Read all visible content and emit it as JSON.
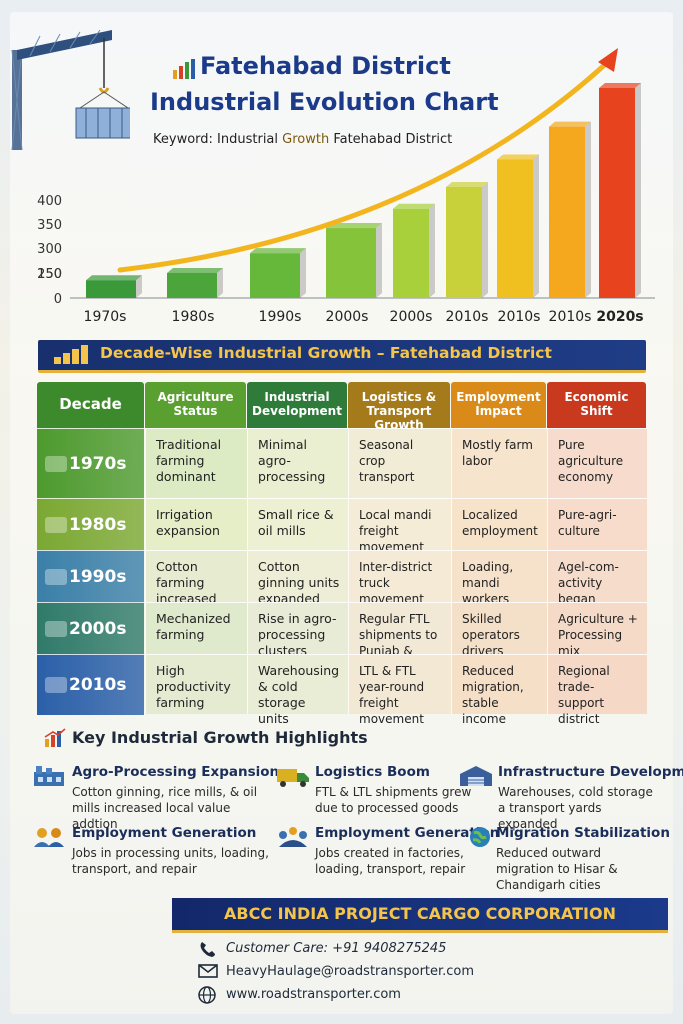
{
  "header": {
    "title_line1": "Fatehabad District",
    "title_line2": "Industrial Evolution Chart",
    "keyword_prefix": "Keyword: Industrial ",
    "keyword_accent": "Growth",
    "keyword_suffix": " Fatehabad District"
  },
  "chart_data": {
    "type": "bar",
    "title": "Fatehabad District Industrial Evolution Chart",
    "categories": [
      "1970s",
      "1980s",
      "1990s",
      "2000s",
      "2000s",
      "2010s",
      "2010s",
      "2010s",
      "2020s"
    ],
    "values": [
      12,
      27,
      68,
      120,
      160,
      205,
      262,
      330,
      410
    ],
    "colors": [
      "#3a9a3a",
      "#4ba53a",
      "#66b83a",
      "#85c43a",
      "#a7d03a",
      "#c9d13a",
      "#f0c020",
      "#f5a81e",
      "#e8431f"
    ],
    "ylim": [
      0,
      400
    ],
    "yticks": [
      0,
      150,
      200,
      250,
      300,
      350,
      400
    ],
    "trend": "upward arrow"
  },
  "section": {
    "title": "Decade-Wise Industrial Growth – Fatehabad District"
  },
  "table": {
    "headers": [
      {
        "label": "Decade",
        "color": "#3d8a2c"
      },
      {
        "label": "Agriculture Status",
        "color": "#5aa030"
      },
      {
        "label": "Industrial Development",
        "color": "#2e7b3a"
      },
      {
        "label": "Logistics & Transport Growth",
        "color": "#a47a1a"
      },
      {
        "label": "Employment Impact",
        "color": "#d98a18"
      },
      {
        "label": "Economic Shift",
        "color": "#c8391e"
      }
    ],
    "rows": [
      {
        "decade": "1970s",
        "color": "#4d9a2e",
        "cells": [
          "Traditional farming dominant",
          "Minimal agro-processing",
          "Seasonal crop transport",
          "Mostly farm labor",
          "Pure agriculture economy"
        ]
      },
      {
        "decade": "1980s",
        "color": "#7aa832",
        "cells": [
          "Irrigation expansion",
          "Small rice & oil mills",
          "Local mandi freight movement",
          "Localized employment",
          "Pure-agri-culture"
        ]
      },
      {
        "decade": "1990s",
        "color": "#3a7fa8",
        "cells": [
          "Cotton farming increased",
          "Cotton ginning units expanded",
          "Inter-district truck movement",
          "Loading, mandi workers",
          "Agel-com-activity began"
        ]
      },
      {
        "decade": "2000s",
        "color": "#2f7a6a",
        "cells": [
          "Mechanized farming",
          "Rise in agro-processing clusters",
          "Regular FTL shipments to Punjab & Delhi",
          "Skilled operators drivers demand",
          "Agriculture + Processing mix"
        ]
      },
      {
        "decade": "2010s",
        "color": "#2a5fa8",
        "cells": [
          "High productivity farming",
          "Warehousing & cold storage units",
          "LTL & FTL year-round freight movement",
          "Reduced migration, stable income",
          "Regional trade-support district"
        ]
      }
    ]
  },
  "highlights": {
    "title": "Key Industrial Growth Highlights",
    "items": [
      {
        "title": "Agro-Processing Expansion",
        "desc": "Cotton ginning, rice mills, & oil mills increased local value addtion"
      },
      {
        "title": "Logistics Boom",
        "desc": "FTL & LTL shipments grew due to processed goods"
      },
      {
        "title": "Infrastructure Development",
        "desc": "Warehouses, cold storage a transport yards expanded"
      },
      {
        "title": "Employment Generation",
        "desc": "Jobs in processing units, loading, transport, and repair"
      },
      {
        "title": "Employment Generation",
        "desc": "Jobs created in factories, loading, transport, repair"
      },
      {
        "title": "Migration Stabilization",
        "desc": "Reduced outward migration to Hisar & Chandigarh cities"
      }
    ]
  },
  "footer": {
    "company": "ABCC INDIA PROJECT CARGO CORPORATION",
    "customer_care": "Customer Care:  +91 9408275245",
    "email": "HeavyHaulage@roadstransporter.com",
    "website": "www.roadstransporter.com"
  }
}
